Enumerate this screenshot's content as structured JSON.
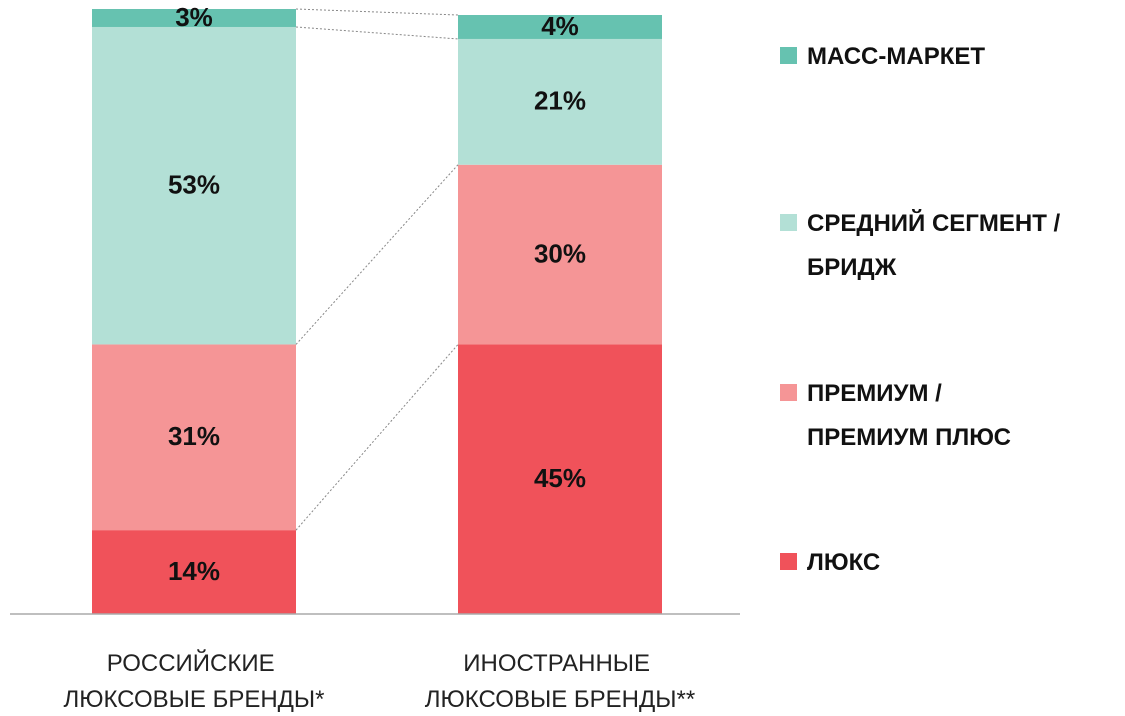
{
  "chart_data": {
    "type": "stacked_bar",
    "categories": [
      "РОССИЙСКИЕ ЛЮКСОВЫЕ БРЕНДЫ*",
      "ИНОСТРАННЫЕ ЛЮКСОВЫЕ БРЕНДЫ**"
    ],
    "series": [
      {
        "name": "ЛЮКС",
        "color": "#f0525a",
        "values": [
          14,
          45
        ],
        "value_labels": [
          "14%",
          "45%"
        ]
      },
      {
        "name": "ПРЕМИУМ / ПРЕМИУМ ПЛЮС",
        "color": "#f59596",
        "values": [
          31,
          30
        ],
        "value_labels": [
          "31%",
          "30%"
        ]
      },
      {
        "name": "СРЕДНИЙ СЕГМЕНТ / БРИДЖ",
        "color": "#b3e0d6",
        "values": [
          53,
          21
        ],
        "value_labels": [
          "53%",
          "21%"
        ]
      },
      {
        "name": "МАСС-МАРКЕТ",
        "color": "#66c2b0",
        "values": [
          3,
          4
        ],
        "value_labels": [
          "3%",
          "4%"
        ]
      }
    ],
    "ylim": [
      0,
      100
    ],
    "legend": "right"
  }
}
